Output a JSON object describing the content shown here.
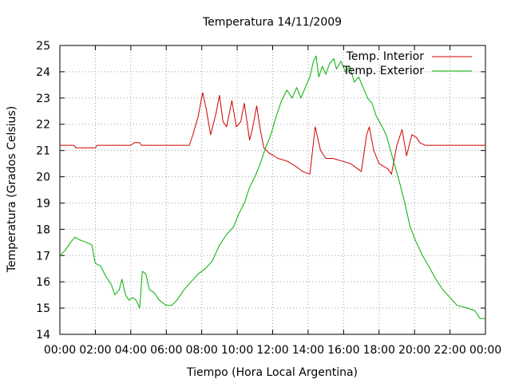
{
  "chart_data": {
    "type": "line",
    "title": "Temperatura 14/11/2009",
    "xlabel": "Tiempo (Hora Local Argentina)",
    "ylabel": "Temperatura (Grados Celsius)",
    "xlim": [
      0,
      24
    ],
    "ylim": [
      14,
      25
    ],
    "x_tick_labels": [
      "00:00",
      "02:00",
      "04:00",
      "06:00",
      "08:00",
      "10:00",
      "12:00",
      "14:00",
      "16:00",
      "18:00",
      "20:00",
      "22:00",
      "00:00"
    ],
    "y_tick_labels": [
      "14",
      "15",
      "16",
      "17",
      "18",
      "19",
      "20",
      "21",
      "22",
      "23",
      "24",
      "25"
    ],
    "grid": true,
    "legend_position": "top-right",
    "series": [
      {
        "name": "Temp. Interior",
        "color": "#cc0000",
        "points": [
          [
            0,
            21.2
          ],
          [
            0.8,
            21.2
          ],
          [
            0.9,
            21.1
          ],
          [
            2,
            21.1
          ],
          [
            2.1,
            21.2
          ],
          [
            4,
            21.2
          ],
          [
            4.2,
            21.3
          ],
          [
            4.5,
            21.3
          ],
          [
            4.6,
            21.2
          ],
          [
            7.3,
            21.2
          ],
          [
            7.5,
            21.6
          ],
          [
            7.8,
            22.3
          ],
          [
            8.05,
            23.2
          ],
          [
            8.25,
            22.6
          ],
          [
            8.5,
            21.6
          ],
          [
            8.8,
            22.4
          ],
          [
            9.0,
            23.1
          ],
          [
            9.2,
            22.1
          ],
          [
            9.4,
            21.9
          ],
          [
            9.7,
            22.9
          ],
          [
            9.95,
            21.9
          ],
          [
            10.2,
            22.1
          ],
          [
            10.4,
            22.8
          ],
          [
            10.7,
            21.4
          ],
          [
            10.85,
            21.8
          ],
          [
            11.1,
            22.7
          ],
          [
            11.3,
            21.8
          ],
          [
            11.5,
            21.1
          ],
          [
            11.8,
            20.9
          ],
          [
            12.3,
            20.7
          ],
          [
            12.8,
            20.6
          ],
          [
            13.3,
            20.4
          ],
          [
            13.7,
            20.2
          ],
          [
            14.1,
            20.1
          ],
          [
            14.4,
            21.9
          ],
          [
            14.7,
            21.0
          ],
          [
            15.0,
            20.7
          ],
          [
            15.4,
            20.7
          ],
          [
            15.9,
            20.6
          ],
          [
            16.4,
            20.5
          ],
          [
            16.8,
            20.3
          ],
          [
            17.0,
            20.2
          ],
          [
            17.3,
            21.6
          ],
          [
            17.45,
            21.9
          ],
          [
            17.7,
            21.0
          ],
          [
            18.0,
            20.5
          ],
          [
            18.5,
            20.3
          ],
          [
            18.7,
            20.1
          ],
          [
            19.0,
            21.2
          ],
          [
            19.3,
            21.8
          ],
          [
            19.55,
            20.8
          ],
          [
            19.85,
            21.6
          ],
          [
            20.1,
            21.5
          ],
          [
            20.3,
            21.3
          ],
          [
            20.6,
            21.2
          ],
          [
            24,
            21.2
          ]
        ]
      },
      {
        "name": "Temp. Exterior",
        "color": "#00b000",
        "points": [
          [
            0,
            17.0
          ],
          [
            0.3,
            17.2
          ],
          [
            0.6,
            17.5
          ],
          [
            0.85,
            17.7
          ],
          [
            1.1,
            17.6
          ],
          [
            1.5,
            17.5
          ],
          [
            1.8,
            17.4
          ],
          [
            2.0,
            16.7
          ],
          [
            2.3,
            16.6
          ],
          [
            2.6,
            16.2
          ],
          [
            2.9,
            15.9
          ],
          [
            3.1,
            15.5
          ],
          [
            3.35,
            15.7
          ],
          [
            3.5,
            16.1
          ],
          [
            3.7,
            15.5
          ],
          [
            3.9,
            15.3
          ],
          [
            4.1,
            15.4
          ],
          [
            4.3,
            15.3
          ],
          [
            4.5,
            15.0
          ],
          [
            4.65,
            16.4
          ],
          [
            4.85,
            16.3
          ],
          [
            5.05,
            15.7
          ],
          [
            5.3,
            15.6
          ],
          [
            5.6,
            15.3
          ],
          [
            6.0,
            15.1
          ],
          [
            6.3,
            15.1
          ],
          [
            6.6,
            15.3
          ],
          [
            7.0,
            15.7
          ],
          [
            7.4,
            16.0
          ],
          [
            7.8,
            16.3
          ],
          [
            8.2,
            16.5
          ],
          [
            8.6,
            16.8
          ],
          [
            9.0,
            17.4
          ],
          [
            9.4,
            17.8
          ],
          [
            9.8,
            18.1
          ],
          [
            10.1,
            18.6
          ],
          [
            10.4,
            19.0
          ],
          [
            10.7,
            19.6
          ],
          [
            11.0,
            20.0
          ],
          [
            11.3,
            20.5
          ],
          [
            11.6,
            21.1
          ],
          [
            11.9,
            21.6
          ],
          [
            12.2,
            22.3
          ],
          [
            12.5,
            22.9
          ],
          [
            12.8,
            23.3
          ],
          [
            13.1,
            23.0
          ],
          [
            13.35,
            23.4
          ],
          [
            13.6,
            23.0
          ],
          [
            13.9,
            23.5
          ],
          [
            14.1,
            23.8
          ],
          [
            14.3,
            24.4
          ],
          [
            14.45,
            24.6
          ],
          [
            14.6,
            23.8
          ],
          [
            14.8,
            24.2
          ],
          [
            15.0,
            23.9
          ],
          [
            15.2,
            24.3
          ],
          [
            15.45,
            24.5
          ],
          [
            15.6,
            24.1
          ],
          [
            15.85,
            24.4
          ],
          [
            16.1,
            24.0
          ],
          [
            16.35,
            24.2
          ],
          [
            16.6,
            23.6
          ],
          [
            16.85,
            23.8
          ],
          [
            17.1,
            23.4
          ],
          [
            17.35,
            23.0
          ],
          [
            17.6,
            22.8
          ],
          [
            17.85,
            22.3
          ],
          [
            18.1,
            22.0
          ],
          [
            18.4,
            21.6
          ],
          [
            18.65,
            21.0
          ],
          [
            18.9,
            20.4
          ],
          [
            19.15,
            19.8
          ],
          [
            19.45,
            19.0
          ],
          [
            19.75,
            18.1
          ],
          [
            20.1,
            17.5
          ],
          [
            20.45,
            17.0
          ],
          [
            20.8,
            16.6
          ],
          [
            21.2,
            16.1
          ],
          [
            21.6,
            15.7
          ],
          [
            22.0,
            15.4
          ],
          [
            22.4,
            15.1
          ],
          [
            23.0,
            15.0
          ],
          [
            23.4,
            14.9
          ],
          [
            23.7,
            14.6
          ],
          [
            24.0,
            14.6
          ]
        ]
      }
    ]
  }
}
